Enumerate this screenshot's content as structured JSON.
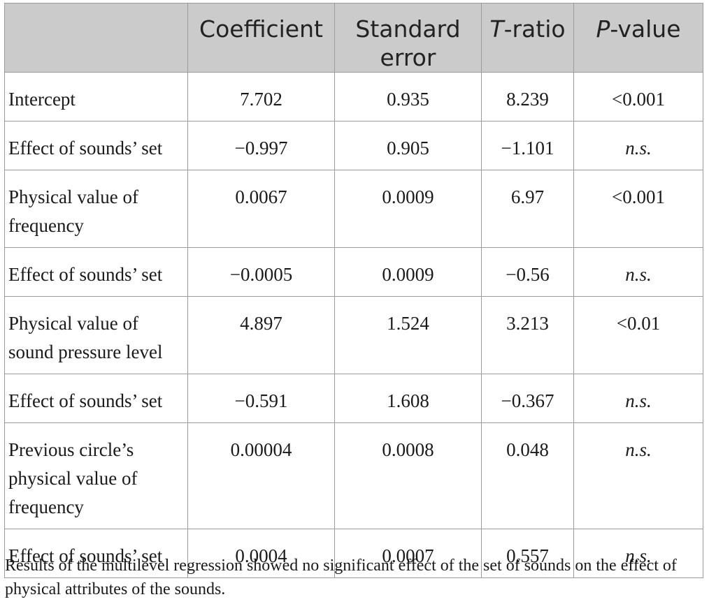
{
  "table": {
    "headers": [
      {
        "text": "",
        "prefix_italic": "",
        "suffix": ""
      },
      {
        "text": "Coefficient",
        "prefix_italic": "",
        "suffix": ""
      },
      {
        "text": "Standard error",
        "prefix_italic": "",
        "suffix": ""
      },
      {
        "text": "",
        "prefix_italic": "T",
        "suffix": "-ratio"
      },
      {
        "text": "",
        "prefix_italic": "P",
        "suffix": "-value"
      }
    ],
    "rows": [
      {
        "label": "Intercept",
        "coefficient": "7.702",
        "std_error": "0.935",
        "t_ratio": "8.239",
        "p_value": "<0.001",
        "p_italic": false
      },
      {
        "label": "Effect of sounds’ set",
        "coefficient": "−0.997",
        "std_error": "0.905",
        "t_ratio": "−1.101",
        "p_value": "n.s.",
        "p_italic": true
      },
      {
        "label": "Physical value of frequency",
        "coefficient": "0.0067",
        "std_error": "0.0009",
        "t_ratio": "6.97",
        "p_value": "<0.001",
        "p_italic": false
      },
      {
        "label": "Effect of sounds’ set",
        "coefficient": "−0.0005",
        "std_error": "0.0009",
        "t_ratio": "−0.56",
        "p_value": "n.s.",
        "p_italic": true
      },
      {
        "label": "Physical value of sound pressure level",
        "coefficient": "4.897",
        "std_error": "1.524",
        "t_ratio": "3.213",
        "p_value": "<0.01",
        "p_italic": false
      },
      {
        "label": "Effect of sounds’ set",
        "coefficient": "−0.591",
        "std_error": "1.608",
        "t_ratio": "−0.367",
        "p_value": "n.s.",
        "p_italic": true
      },
      {
        "label": "Previous circle’s physical value of frequency",
        "coefficient": "0.00004",
        "std_error": "0.0008",
        "t_ratio": "0.048",
        "p_value": "n.s.",
        "p_italic": true
      },
      {
        "label": "Effect of sounds’ set",
        "coefficient": "0.0004",
        "std_error": "0.0007",
        "t_ratio": "0.557",
        "p_value": "n.s.",
        "p_italic": true
      }
    ]
  },
  "caption": "Results of the multilevel regression showed no significant effect of the set of sounds on the effect of physical attributes of the sounds.",
  "colors": {
    "header_background": "#cbcbcb",
    "border": "#9b9b9b",
    "text": "#1a1a1a"
  }
}
